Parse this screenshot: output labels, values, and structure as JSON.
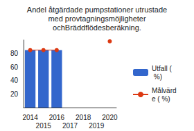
{
  "chart_data": {
    "type": "bar",
    "title": "Andel åtgärdade pumpstationer utrustade med provtagningsmöjligheter ochBräddflödesberäkning.",
    "categories": [
      "2014",
      "2015",
      "2016",
      "2017",
      "2018",
      "2019",
      "2020"
    ],
    "series": [
      {
        "name": "Utfall ( %)",
        "type": "bar",
        "color": "#3366cc",
        "values": [
          85,
          85,
          85,
          null,
          null,
          null,
          null
        ]
      },
      {
        "name": "Målvärde ( %)",
        "type": "line",
        "color": "#dc3912",
        "marker": "circle",
        "values": [
          85,
          85,
          85,
          null,
          null,
          null,
          98
        ]
      }
    ],
    "ylim": [
      0,
      100
    ],
    "yticks": [
      20,
      40,
      60,
      80
    ],
    "grid": false,
    "legend": "right"
  }
}
